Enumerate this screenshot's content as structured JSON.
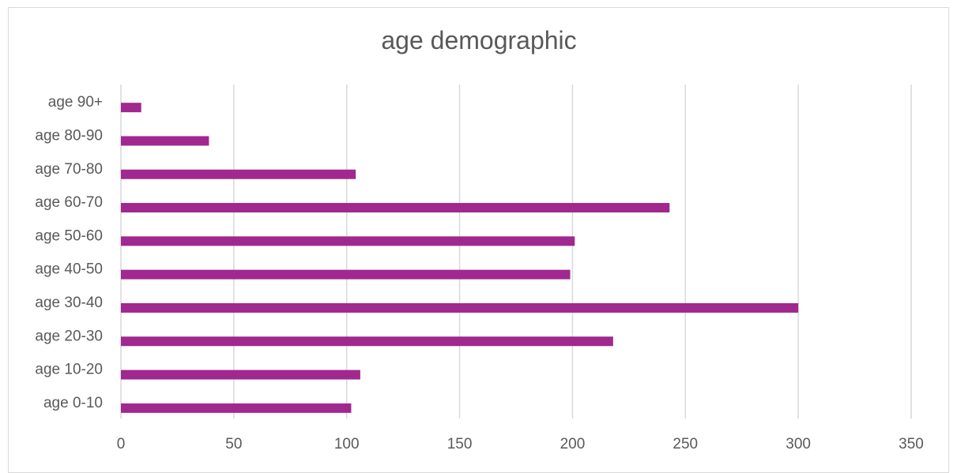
{
  "chart_data": {
    "type": "bar",
    "orientation": "horizontal",
    "title": "age demographic",
    "categories": [
      "age 0-10",
      "age 10-20",
      "age 20-30",
      "age 30-40",
      "age 40-50",
      "age 50-60",
      "age 60-70",
      "age 70-80",
      "age 80-90",
      "age 90+"
    ],
    "series": [
      {
        "values": [
          102,
          106,
          218,
          300,
          199,
          201,
          243,
          104,
          39,
          9
        ],
        "color": "#a0288f"
      }
    ],
    "xlabel": "",
    "ylabel": "",
    "xlim": [
      0,
      350
    ],
    "xticks": [
      "0",
      "50",
      "100",
      "150",
      "200",
      "250",
      "300",
      "350"
    ],
    "grid": "vertical",
    "legend": "none"
  }
}
